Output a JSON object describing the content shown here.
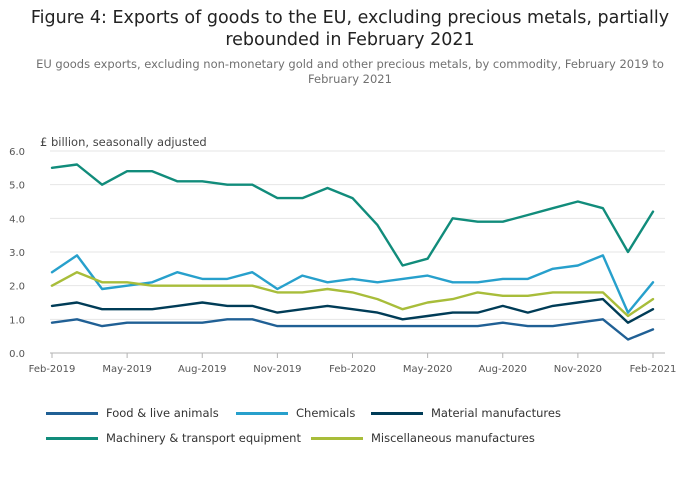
{
  "title": "Figure 4: Exports of goods to the EU, excluding precious metals, partially rebounded in February 2021",
  "subtitle": "EU goods exports, excluding non-monetary gold and other precious metals, by commodity, February 2019 to February 2021",
  "chart_data": {
    "type": "line",
    "ylabel": "£ billion, seasonally adjusted",
    "ylim": [
      0,
      6
    ],
    "yticks": [
      "0.0",
      "1.0",
      "2.0",
      "3.0",
      "4.0",
      "5.0",
      "6.0"
    ],
    "xticks": [
      {
        "label": "Feb-2019",
        "index": 0
      },
      {
        "label": "May-2019",
        "index": 3
      },
      {
        "label": "Aug-2019",
        "index": 6
      },
      {
        "label": "Nov-2019",
        "index": 9
      },
      {
        "label": "Feb-2020",
        "index": 12
      },
      {
        "label": "May-2020",
        "index": 15
      },
      {
        "label": "Aug-2020",
        "index": 18
      },
      {
        "label": "Nov-2020",
        "index": 21
      },
      {
        "label": "Feb-2021",
        "index": 24
      }
    ],
    "x": [
      "Feb-2019",
      "Mar-2019",
      "Apr-2019",
      "May-2019",
      "Jun-2019",
      "Jul-2019",
      "Aug-2019",
      "Sep-2019",
      "Oct-2019",
      "Nov-2019",
      "Dec-2019",
      "Jan-2020",
      "Feb-2020",
      "Mar-2020",
      "Apr-2020",
      "May-2020",
      "Jun-2020",
      "Jul-2020",
      "Aug-2020",
      "Sep-2020",
      "Oct-2020",
      "Nov-2020",
      "Dec-2020",
      "Jan-2021",
      "Feb-2021"
    ],
    "grid": true,
    "legend_position": "bottom",
    "series": [
      {
        "name": "Food & live animals",
        "color": "#206095",
        "values": [
          0.9,
          1.0,
          0.8,
          0.9,
          0.9,
          0.9,
          0.9,
          1.0,
          1.0,
          0.8,
          0.8,
          0.8,
          0.8,
          0.8,
          0.8,
          0.8,
          0.8,
          0.8,
          0.9,
          0.8,
          0.8,
          0.9,
          1.0,
          0.4,
          0.7
        ]
      },
      {
        "name": "Chemicals",
        "color": "#27a0cc",
        "values": [
          2.4,
          2.9,
          1.9,
          2.0,
          2.1,
          2.4,
          2.2,
          2.2,
          2.4,
          1.9,
          2.3,
          2.1,
          2.2,
          2.1,
          2.2,
          2.3,
          2.1,
          2.1,
          2.2,
          2.2,
          2.5,
          2.6,
          2.9,
          1.2,
          2.1
        ]
      },
      {
        "name": "Material manufactures",
        "color": "#003c57",
        "values": [
          1.4,
          1.5,
          1.3,
          1.3,
          1.3,
          1.4,
          1.5,
          1.4,
          1.4,
          1.2,
          1.3,
          1.4,
          1.3,
          1.2,
          1.0,
          1.1,
          1.2,
          1.2,
          1.4,
          1.2,
          1.4,
          1.5,
          1.6,
          0.9,
          1.3
        ]
      },
      {
        "name": "Machinery & transport equipment",
        "color": "#118c7b",
        "values": [
          5.5,
          5.6,
          5.0,
          5.4,
          5.4,
          5.1,
          5.1,
          5.0,
          5.0,
          4.6,
          4.6,
          4.9,
          4.6,
          3.8,
          2.6,
          2.8,
          4.0,
          3.9,
          3.9,
          4.1,
          4.3,
          4.5,
          4.3,
          3.0,
          4.2
        ]
      },
      {
        "name": "Miscellaneous manufactures",
        "color": "#a8bd3a",
        "values": [
          2.0,
          2.4,
          2.1,
          2.1,
          2.0,
          2.0,
          2.0,
          2.0,
          2.0,
          1.8,
          1.8,
          1.9,
          1.8,
          1.6,
          1.3,
          1.5,
          1.6,
          1.8,
          1.7,
          1.7,
          1.8,
          1.8,
          1.8,
          1.1,
          1.6
        ]
      }
    ]
  }
}
